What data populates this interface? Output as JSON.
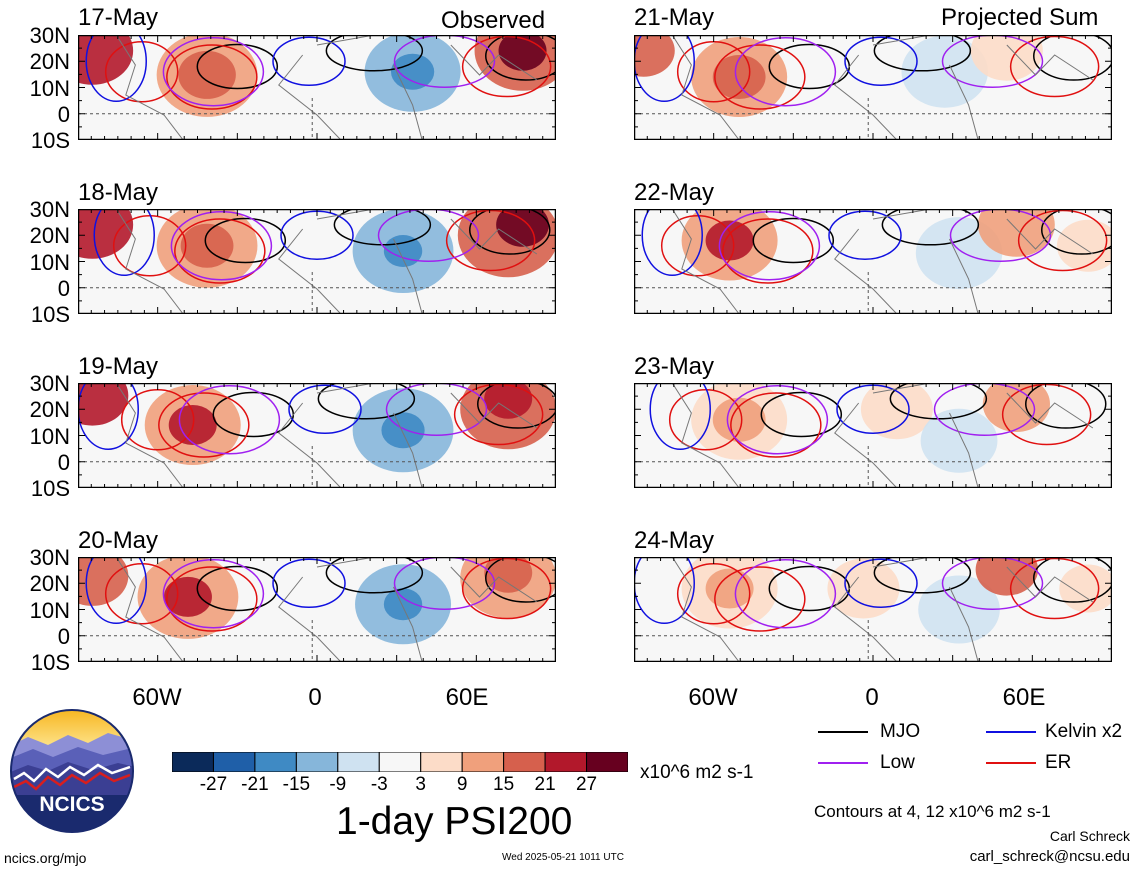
{
  "header": {
    "observed": "Observed",
    "projected": "Projected Sum"
  },
  "panels_left": [
    "17-May",
    "18-May",
    "19-May",
    "20-May"
  ],
  "panels_right": [
    "21-May",
    "22-May",
    "23-May",
    "24-May"
  ],
  "lat_labels": [
    "30N",
    "20N",
    "10N",
    "0",
    "10S"
  ],
  "lon_labels": [
    "60W",
    "0",
    "60E"
  ],
  "legend": {
    "mjo": "MJO",
    "kelvin": "Kelvin x2",
    "low": "Low",
    "er": "ER",
    "colors": {
      "mjo": "#000000",
      "kelvin": "#1010e0",
      "low": "#a020f0",
      "er": "#e01010"
    }
  },
  "colorbar": {
    "ticks": [
      "-27",
      "-21",
      "-15",
      "-9",
      "-3",
      "3",
      "9",
      "15",
      "21",
      "27"
    ],
    "units": "x10^6 m2 s-1",
    "colors": [
      "#0b2a5a",
      "#1f5fa8",
      "#3f8ac4",
      "#86b6da",
      "#cfe2f1",
      "#f7f7f7",
      "#fcdcc8",
      "#f0a07c",
      "#d6604d",
      "#b2182b",
      "#67001f"
    ]
  },
  "title": "1-day PSI200",
  "contours_note": "Contours at 4, 12 x10^6 m2 s-1",
  "author": "Carl Schreck",
  "email": "carl_schreck@ncsu.edu",
  "site": "ncics.org/mjo",
  "timestamp": "Wed 2025-05-21 1011 UTC",
  "logo_text": "NCICS"
}
